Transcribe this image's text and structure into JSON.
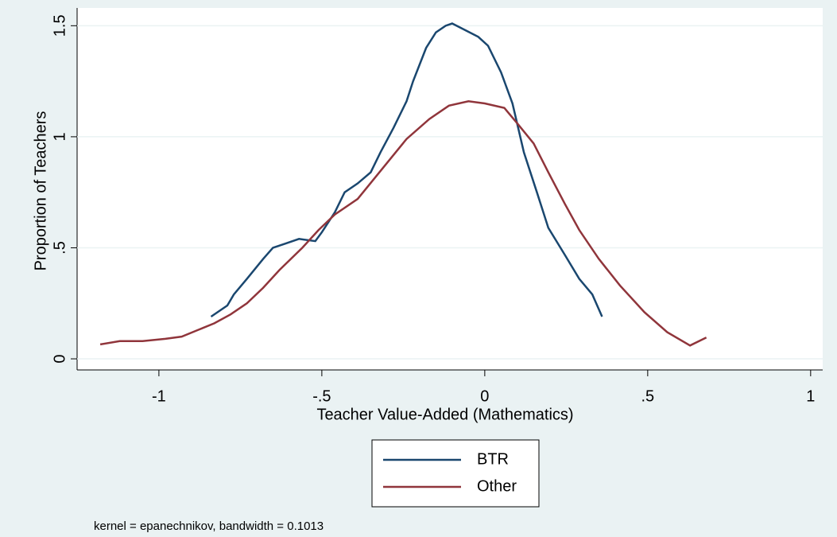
{
  "chart_data": {
    "type": "line",
    "x_label": "Teacher Value-Added (Mathematics)",
    "y_label": "Proportion of Teachers",
    "note": "kernel = epanechnikov, bandwidth = 0.1013",
    "xlim": [
      -1.251,
      1.037
    ],
    "ylim": [
      -0.05,
      1.58
    ],
    "xticks": [
      {
        "value": -1,
        "label": "-1"
      },
      {
        "value": -0.5,
        "label": "-.5"
      },
      0,
      {
        "value": 0.5,
        "label": ".5"
      },
      1
    ],
    "yticks": [
      0,
      {
        "value": 0.5,
        "label": ".5"
      },
      1,
      1.5
    ],
    "grid": true,
    "series": [
      {
        "name": "BTR",
        "color": "#1a476f",
        "x": [
          -0.84,
          -0.79,
          -0.77,
          -0.73,
          -0.68,
          -0.65,
          -0.61,
          -0.57,
          -0.52,
          -0.5,
          -0.46,
          -0.43,
          -0.39,
          -0.35,
          -0.32,
          -0.28,
          -0.24,
          -0.22,
          -0.18,
          -0.15,
          -0.12,
          -0.1,
          -0.06,
          -0.02,
          0.01,
          0.05,
          0.085,
          0.12,
          0.16,
          0.195,
          0.245,
          0.29,
          0.33,
          0.36
        ],
        "values": [
          0.19,
          0.24,
          0.29,
          0.36,
          0.45,
          0.5,
          0.52,
          0.54,
          0.53,
          0.57,
          0.66,
          0.75,
          0.79,
          0.84,
          0.93,
          1.04,
          1.16,
          1.25,
          1.4,
          1.47,
          1.5,
          1.51,
          1.48,
          1.45,
          1.41,
          1.29,
          1.15,
          0.93,
          0.75,
          0.59,
          0.47,
          0.36,
          0.29,
          0.19
        ]
      },
      {
        "name": "Other",
        "color": "#90353b",
        "x": [
          -1.18,
          -1.12,
          -1.05,
          -0.98,
          -0.93,
          -0.88,
          -0.83,
          -0.78,
          -0.73,
          -0.68,
          -0.63,
          -0.56,
          -0.51,
          -0.46,
          -0.39,
          -0.34,
          -0.29,
          -0.24,
          -0.17,
          -0.11,
          -0.05,
          0,
          0.06,
          0.1,
          0.15,
          0.195,
          0.245,
          0.29,
          0.35,
          0.415,
          0.49,
          0.56,
          0.63,
          0.68
        ],
        "values": [
          0.065,
          0.08,
          0.08,
          0.09,
          0.1,
          0.13,
          0.16,
          0.2,
          0.25,
          0.32,
          0.4,
          0.5,
          0.58,
          0.65,
          0.72,
          0.81,
          0.9,
          0.99,
          1.08,
          1.14,
          1.16,
          1.15,
          1.13,
          1.06,
          0.97,
          0.84,
          0.7,
          0.58,
          0.45,
          0.33,
          0.21,
          0.12,
          0.06,
          0.096
        ]
      }
    ]
  }
}
